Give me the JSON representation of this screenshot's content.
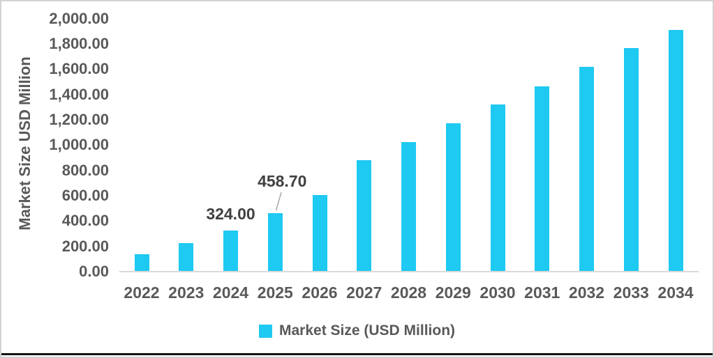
{
  "chart_data": {
    "type": "bar",
    "title": "",
    "ylabel": "Market Size USD Million",
    "xlabel": "",
    "categories": [
      "2022",
      "2023",
      "2024",
      "2025",
      "2026",
      "2027",
      "2028",
      "2029",
      "2030",
      "2031",
      "2032",
      "2033",
      "2034"
    ],
    "series": [
      {
        "name": "Market Size (USD Million)",
        "values": [
          135,
          225,
          324,
          458.7,
          605,
          880,
          1023,
          1172,
          1321,
          1464,
          1613,
          1762,
          1905
        ]
      }
    ],
    "ylim": [
      0,
      2000
    ],
    "ytick_step": 200,
    "ytick_labels": [
      "0.00",
      "200.00",
      "400.00",
      "600.00",
      "800.00",
      "1,000.00",
      "1,200.00",
      "1,400.00",
      "1,600.00",
      "1,800.00",
      "2,000.00"
    ],
    "grid": false,
    "legend_position": "bottom",
    "legend_entries": [
      "Market Size (USD Million)"
    ],
    "data_labels": [
      {
        "category": "2024",
        "text": "324.00",
        "callout": false
      },
      {
        "category": "2025",
        "text": "458.70",
        "callout": true
      }
    ]
  },
  "legend": {
    "label": "Market Size (USD Million)"
  },
  "colors": {
    "bar": "#1EC9F2",
    "axis_text": "#595959",
    "data_label_text": "#404040",
    "axis_line": "#D9D9D9",
    "callout_line": "#A6A6A6",
    "frame_border": "#D2D2D2",
    "bottom_rule": "#131313",
    "background": "#FFFFFF"
  }
}
